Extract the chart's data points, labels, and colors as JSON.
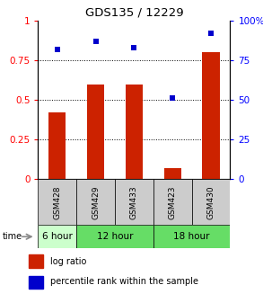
{
  "title": "GDS135 / 12229",
  "samples": [
    "GSM428",
    "GSM429",
    "GSM433",
    "GSM423",
    "GSM430"
  ],
  "log_ratio": [
    0.42,
    0.6,
    0.6,
    0.07,
    0.8
  ],
  "percentile_rank": [
    0.82,
    0.87,
    0.83,
    0.51,
    0.92
  ],
  "bar_color": "#cc2200",
  "dot_color": "#0000cc",
  "yticks_left": [
    0,
    0.25,
    0.5,
    0.75,
    1.0
  ],
  "ytick_labels_left": [
    "0",
    "0.25",
    "0.5",
    "0.75",
    "1"
  ],
  "yticks_right": [
    0,
    25,
    50,
    75,
    100
  ],
  "ytick_labels_right": [
    "0",
    "25",
    "50",
    "75",
    "100%"
  ],
  "hlines": [
    0.25,
    0.5,
    0.75
  ],
  "legend_bar_label": "log ratio",
  "legend_dot_label": "percentile rank within the sample",
  "time_label": "time",
  "sample_row_color": "#cccccc",
  "time_groups": [
    {
      "label": "6 hour",
      "start": 0,
      "end": 1,
      "color": "#ccffcc"
    },
    {
      "label": "12 hour",
      "start": 1,
      "end": 3,
      "color": "#66dd66"
    },
    {
      "label": "18 hour",
      "start": 3,
      "end": 5,
      "color": "#66dd66"
    }
  ]
}
